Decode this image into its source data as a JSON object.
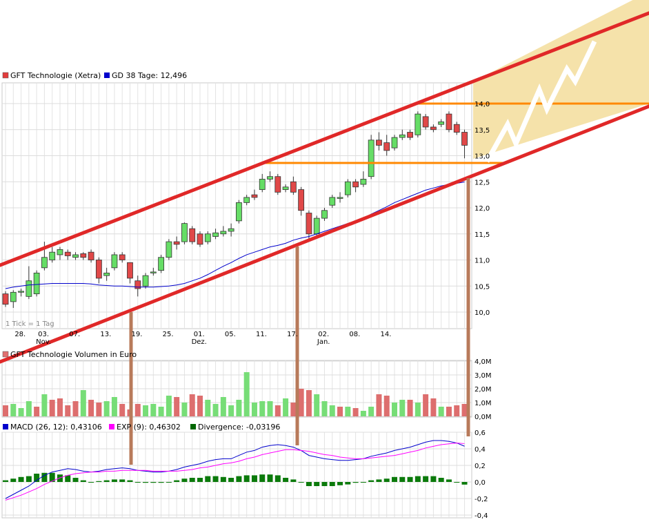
{
  "chart_data": [
    {
      "type": "candlestick",
      "legend": [
        {
          "label": "GFT Technologie (Xetra)",
          "color": "#e23c3c"
        },
        {
          "label": "GD 38 Tage: 12,496",
          "color": "#0000cc"
        }
      ],
      "footnote": "1 Tick = 1 Tag",
      "x_ticks": [
        {
          "day": "28.",
          "index": 1
        },
        {
          "day": "03.",
          "month": "Nov.",
          "index": 4
        },
        {
          "day": "07.",
          "index": 8
        },
        {
          "day": "13.",
          "index": 12
        },
        {
          "day": "19.",
          "index": 16
        },
        {
          "day": "25.",
          "index": 20
        },
        {
          "day": "01.",
          "month": "Dez.",
          "index": 24
        },
        {
          "day": "05.",
          "index": 28
        },
        {
          "day": "11.",
          "index": 32
        },
        {
          "day": "17.",
          "index": 36
        },
        {
          "day": "02.",
          "month": "Jan.",
          "index": 40
        },
        {
          "day": "08.",
          "index": 44
        },
        {
          "day": "14.",
          "index": 48
        }
      ],
      "y_ticks": [
        "10,0",
        "10,5",
        "11,0",
        "11,5",
        "12,0",
        "12,5",
        "13,0",
        "13,5",
        "14,0"
      ],
      "ylim": [
        9.85,
        14.1
      ],
      "candles": [
        [
          10.35,
          10.15,
          10.4,
          10.1
        ],
        [
          10.2,
          10.38,
          10.42,
          10.08
        ],
        [
          10.38,
          10.4,
          10.45,
          10.3
        ],
        [
          10.3,
          10.6,
          10.88,
          10.25
        ],
        [
          10.35,
          10.75,
          10.8,
          10.3
        ],
        [
          10.85,
          11.05,
          11.35,
          10.8
        ],
        [
          11.0,
          11.15,
          11.25,
          10.95
        ],
        [
          11.1,
          11.2,
          11.25,
          11.0
        ],
        [
          11.15,
          11.08,
          11.2,
          11.0
        ],
        [
          11.05,
          11.1,
          11.15,
          11.0
        ],
        [
          11.12,
          11.05,
          11.15,
          11.0
        ],
        [
          11.15,
          11.0,
          11.2,
          10.95
        ],
        [
          11.0,
          10.65,
          11.05,
          10.55
        ],
        [
          10.7,
          10.75,
          10.85,
          10.6
        ],
        [
          10.85,
          11.1,
          11.15,
          10.8
        ],
        [
          11.1,
          11.0,
          11.15,
          10.95
        ],
        [
          10.95,
          10.65,
          10.95,
          10.55
        ],
        [
          10.6,
          10.45,
          10.7,
          10.3
        ],
        [
          10.5,
          10.7,
          10.75,
          10.45
        ],
        [
          10.75,
          10.77,
          10.85,
          10.7
        ],
        [
          10.8,
          11.05,
          11.1,
          10.75
        ],
        [
          11.05,
          11.35,
          11.4,
          11.0
        ],
        [
          11.35,
          11.3,
          11.45,
          11.2
        ],
        [
          11.35,
          11.7,
          11.72,
          11.3
        ],
        [
          11.6,
          11.35,
          11.65,
          11.3
        ],
        [
          11.5,
          11.3,
          11.55,
          11.25
        ],
        [
          11.35,
          11.5,
          11.55,
          11.3
        ],
        [
          11.45,
          11.52,
          11.6,
          11.4
        ],
        [
          11.5,
          11.55,
          11.65,
          11.45
        ],
        [
          11.55,
          11.6,
          11.7,
          11.45
        ],
        [
          11.75,
          12.1,
          12.15,
          11.7
        ],
        [
          12.1,
          12.2,
          12.25,
          12.05
        ],
        [
          12.25,
          12.2,
          12.35,
          12.15
        ],
        [
          12.35,
          12.55,
          12.65,
          12.3
        ],
        [
          12.55,
          12.6,
          12.7,
          12.5
        ],
        [
          12.6,
          12.3,
          12.65,
          12.25
        ],
        [
          12.35,
          12.4,
          12.45,
          12.3
        ],
        [
          12.5,
          12.3,
          12.6,
          12.25
        ],
        [
          12.35,
          11.95,
          12.4,
          11.85
        ],
        [
          11.9,
          11.5,
          11.95,
          11.4
        ],
        [
          11.5,
          11.8,
          11.85,
          11.45
        ],
        [
          11.8,
          11.95,
          12.0,
          11.75
        ],
        [
          12.05,
          12.2,
          12.25,
          12.0
        ],
        [
          12.2,
          12.2,
          12.3,
          12.1
        ],
        [
          12.25,
          12.5,
          12.55,
          12.2
        ],
        [
          12.5,
          12.4,
          12.55,
          12.3
        ],
        [
          12.45,
          12.55,
          12.7,
          12.4
        ],
        [
          12.6,
          13.3,
          13.4,
          12.55
        ],
        [
          13.3,
          13.2,
          13.45,
          13.1
        ],
        [
          13.25,
          13.1,
          13.4,
          13.0
        ],
        [
          13.15,
          13.35,
          13.4,
          13.1
        ],
        [
          13.35,
          13.4,
          13.5,
          13.3
        ],
        [
          13.45,
          13.35,
          13.5,
          13.3
        ],
        [
          13.4,
          13.8,
          13.85,
          13.35
        ],
        [
          13.75,
          13.55,
          13.8,
          13.5
        ],
        [
          13.55,
          13.5,
          13.6,
          13.45
        ],
        [
          13.6,
          13.65,
          13.7,
          13.55
        ],
        [
          13.8,
          13.5,
          13.85,
          13.45
        ],
        [
          13.6,
          13.45,
          13.65,
          13.4
        ],
        [
          13.45,
          13.2,
          13.5,
          12.95
        ]
      ],
      "gd38": [
        10.45,
        10.48,
        10.5,
        10.52,
        10.53,
        10.54,
        10.55,
        10.55,
        10.55,
        10.55,
        10.55,
        10.54,
        10.52,
        10.51,
        10.5,
        10.5,
        10.49,
        10.48,
        10.48,
        10.48,
        10.49,
        10.5,
        10.52,
        10.55,
        10.6,
        10.65,
        10.72,
        10.8,
        10.88,
        10.95,
        11.03,
        11.1,
        11.15,
        11.2,
        11.25,
        11.28,
        11.32,
        11.38,
        11.42,
        11.45,
        11.5,
        11.55,
        11.6,
        11.65,
        11.7,
        11.75,
        11.8,
        11.88,
        11.95,
        12.02,
        12.1,
        12.16,
        12.22,
        12.28,
        12.34,
        12.38,
        12.42,
        12.45,
        12.47,
        12.496
      ]
    },
    {
      "type": "bar",
      "legend": [
        {
          "label": "GFT Technologie Volumen in Euro",
          "color": "#e07070"
        }
      ],
      "y_ticks": [
        "0,0M",
        "1,0M",
        "2,0M",
        "3,0M",
        "4,0M"
      ],
      "ylim": [
        0,
        4.0
      ],
      "values": [
        0.8,
        0.9,
        0.6,
        1.1,
        0.7,
        1.6,
        1.2,
        1.3,
        0.8,
        1.1,
        1.9,
        1.2,
        1.0,
        1.1,
        1.4,
        0.9,
        0.5,
        0.9,
        0.8,
        0.9,
        0.7,
        1.5,
        1.4,
        1.0,
        1.6,
        1.5,
        1.2,
        0.9,
        1.4,
        0.8,
        1.2,
        3.2,
        1.0,
        1.1,
        1.1,
        0.8,
        1.3,
        1.0,
        2.0,
        1.9,
        1.6,
        1.1,
        0.8,
        0.7,
        0.7,
        0.6,
        0.4,
        0.7,
        1.6,
        1.5,
        1.0,
        1.2,
        1.2,
        1.0,
        1.6,
        1.3,
        0.7,
        0.7,
        0.8,
        0.9
      ],
      "up": [
        0,
        1,
        1,
        1,
        0,
        1,
        0,
        0,
        0,
        0,
        1,
        0,
        0,
        1,
        1,
        0,
        0,
        0,
        1,
        1,
        1,
        1,
        0,
        1,
        0,
        0,
        1,
        1,
        1,
        1,
        1,
        1,
        1,
        1,
        1,
        0,
        1,
        0,
        0,
        0,
        1,
        1,
        1,
        0,
        1,
        0,
        1,
        1,
        0,
        0,
        1,
        1,
        0,
        1,
        0,
        0,
        1,
        0,
        0,
        0
      ]
    },
    {
      "type": "line",
      "legend": [
        {
          "label": "MACD (26, 12): 0,43106",
          "color": "#0000cc"
        },
        {
          "label": "EXP (9): 0,46302",
          "color": "#ff00ff"
        },
        {
          "label": "Divergence: -0,03196",
          "color": "#006600"
        }
      ],
      "y_ticks": [
        "-0,4",
        "-0,2",
        "0,0",
        "0,2",
        "0,4",
        "0,6"
      ],
      "ylim": [
        -0.4,
        0.6
      ],
      "macd": [
        -0.2,
        -0.15,
        -0.1,
        -0.05,
        0.02,
        0.08,
        0.12,
        0.14,
        0.16,
        0.15,
        0.13,
        0.12,
        0.13,
        0.15,
        0.16,
        0.17,
        0.16,
        0.14,
        0.13,
        0.12,
        0.12,
        0.13,
        0.15,
        0.18,
        0.2,
        0.22,
        0.25,
        0.27,
        0.28,
        0.28,
        0.32,
        0.36,
        0.38,
        0.42,
        0.44,
        0.45,
        0.44,
        0.42,
        0.38,
        0.32,
        0.3,
        0.28,
        0.27,
        0.26,
        0.26,
        0.27,
        0.28,
        0.31,
        0.33,
        0.35,
        0.38,
        0.4,
        0.42,
        0.45,
        0.48,
        0.5,
        0.5,
        0.49,
        0.47,
        0.43106
      ],
      "exp": [
        -0.22,
        -0.19,
        -0.16,
        -0.12,
        -0.08,
        -0.03,
        0.01,
        0.05,
        0.08,
        0.1,
        0.11,
        0.12,
        0.12,
        0.13,
        0.13,
        0.14,
        0.14,
        0.14,
        0.14,
        0.13,
        0.13,
        0.13,
        0.13,
        0.14,
        0.15,
        0.17,
        0.18,
        0.2,
        0.22,
        0.23,
        0.25,
        0.28,
        0.3,
        0.33,
        0.35,
        0.37,
        0.39,
        0.39,
        0.38,
        0.37,
        0.35,
        0.33,
        0.32,
        0.3,
        0.29,
        0.28,
        0.28,
        0.29,
        0.3,
        0.31,
        0.32,
        0.34,
        0.36,
        0.38,
        0.41,
        0.43,
        0.45,
        0.46,
        0.47,
        0.46302
      ],
      "divergence": [
        0.02,
        0.04,
        0.06,
        0.07,
        0.1,
        0.11,
        0.11,
        0.09,
        0.08,
        0.05,
        0.02,
        0.0,
        0.01,
        0.02,
        0.03,
        0.03,
        0.02,
        0.0,
        -0.01,
        -0.01,
        -0.01,
        0.0,
        0.02,
        0.04,
        0.05,
        0.05,
        0.07,
        0.07,
        0.06,
        0.05,
        0.07,
        0.08,
        0.08,
        0.09,
        0.09,
        0.08,
        0.05,
        0.03,
        0.0,
        -0.05,
        -0.05,
        -0.05,
        -0.05,
        -0.04,
        -0.03,
        -0.01,
        0.0,
        0.02,
        0.03,
        0.04,
        0.06,
        0.06,
        0.06,
        0.07,
        0.07,
        0.07,
        0.05,
        0.03,
        0.0,
        -0.03196
      ]
    }
  ],
  "colors": {
    "up": "#66dd66",
    "down": "#e04848",
    "channel": "#e02828",
    "resistance": "#ff8800",
    "forecast_area": "#f5e2aa",
    "connector": "#b87a5a"
  }
}
